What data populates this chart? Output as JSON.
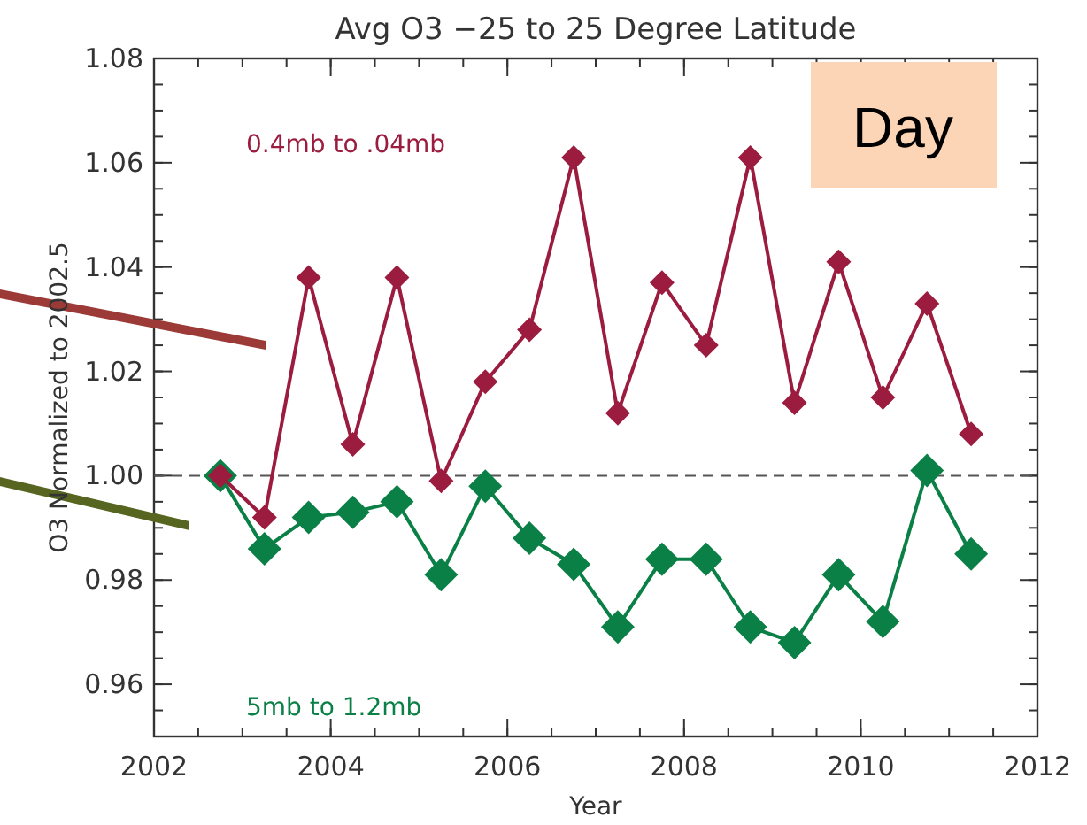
{
  "chart_data": {
    "type": "line",
    "title": "Avg O3 −25 to 25 Degree Latitude",
    "xlabel": "Year",
    "ylabel": "O3 Normalized to 2002.5",
    "x": [
      2002.75,
      2003.25,
      2003.75,
      2004.25,
      2004.75,
      2005.25,
      2005.75,
      2006.25,
      2006.75,
      2007.25,
      2007.75,
      2008.25,
      2008.75,
      2009.25,
      2009.75,
      2010.25,
      2010.75,
      2011.25
    ],
    "series": [
      {
        "name": "0.4mb to .04mb",
        "color": "#9b1c3e",
        "values": [
          1.0,
          0.992,
          1.038,
          1.006,
          1.038,
          0.999,
          1.018,
          1.028,
          1.061,
          1.012,
          1.037,
          1.025,
          1.061,
          1.014,
          1.041,
          1.015,
          1.033,
          1.008
        ]
      },
      {
        "name": "5mb to 1.2mb",
        "color": "#0b8046",
        "values": [
          1.0,
          0.986,
          0.992,
          0.993,
          0.995,
          0.981,
          0.998,
          0.988,
          0.983,
          0.971,
          0.984,
          0.984,
          0.971,
          0.968,
          0.981,
          0.972,
          1.001,
          0.985
        ]
      }
    ],
    "xlim": [
      2002,
      2012
    ],
    "xticks": [
      2002,
      2004,
      2006,
      2008,
      2010,
      2012
    ],
    "ylim": [
      0.95,
      1.08
    ],
    "yticks": [
      {
        "value": 0.96,
        "label": "0.96"
      },
      {
        "value": 0.98,
        "label": "0.98"
      },
      {
        "value": 1.0,
        "label": "1.00"
      },
      {
        "value": 1.02,
        "label": "1.02"
      },
      {
        "value": 1.04,
        "label": "1.04"
      },
      {
        "value": 1.06,
        "label": "1.06"
      },
      {
        "value": 1.08,
        "label": "1.08"
      }
    ],
    "ref_lines": [
      {
        "axis": "y",
        "value": 1.0,
        "color": "#555555",
        "line_style": "dashed"
      }
    ],
    "annotations": [
      "Day"
    ],
    "marker": "diamond",
    "line_style": "solid",
    "grid": false,
    "legend": false
  }
}
